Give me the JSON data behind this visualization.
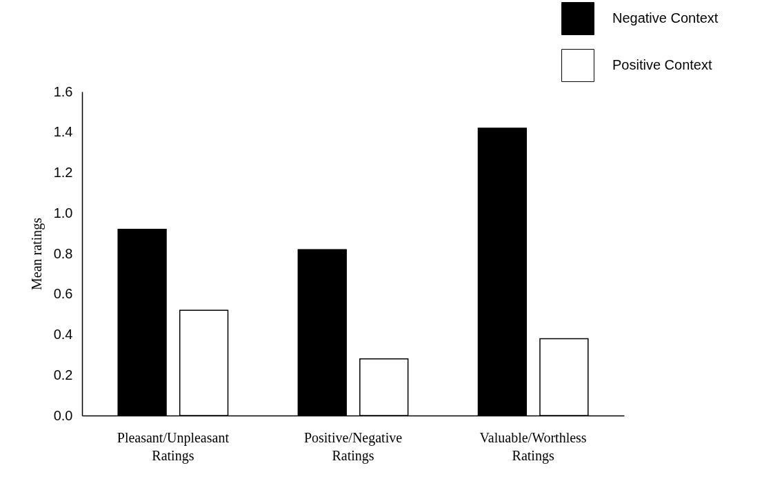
{
  "chart_data": {
    "type": "bar",
    "ylabel": "Mean ratings",
    "categories": [
      "Pleasant/Unpleasant Ratings",
      "Positive/Negative Ratings",
      "Valuable/Worthless Ratings"
    ],
    "series": [
      {
        "name": "Negative Context",
        "color": "#000000",
        "values": [
          0.92,
          0.82,
          1.42
        ]
      },
      {
        "name": "Positive Context",
        "color": "#ffffff",
        "values": [
          0.52,
          0.28,
          0.38
        ]
      }
    ],
    "ylim": [
      0,
      1.6
    ],
    "yticks": [
      {
        "value": 0,
        "label": "0.0"
      },
      {
        "value": 0.2,
        "label": "0.2"
      },
      {
        "value": 0.4,
        "label": "0.4"
      },
      {
        "value": 0.6,
        "label": "0.6"
      },
      {
        "value": 0.8,
        "label": "0.8"
      },
      {
        "value": 1,
        "label": "1.0"
      },
      {
        "value": 1.2,
        "label": "1.2"
      },
      {
        "value": 1.4,
        "label": "1.4"
      },
      {
        "value": 1.6,
        "label": "1.6"
      }
    ],
    "grid": false,
    "legend": "top right"
  }
}
